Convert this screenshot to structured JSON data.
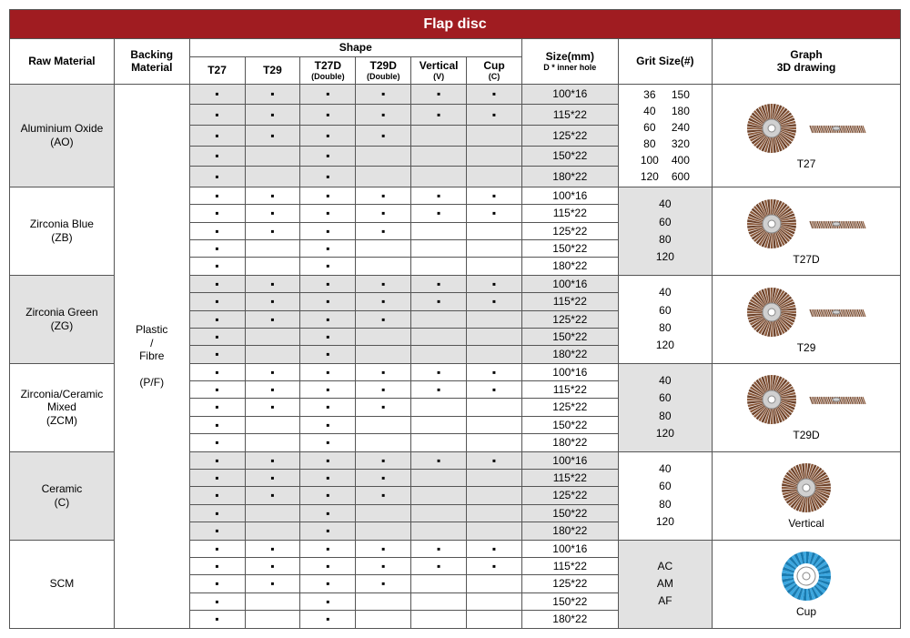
{
  "title": "Flap disc",
  "headers": {
    "raw_material": "Raw Material",
    "backing_material": "Backing Material",
    "shape": "Shape",
    "shapes": [
      {
        "main": "T27",
        "sub": ""
      },
      {
        "main": "T29",
        "sub": ""
      },
      {
        "main": "T27D",
        "sub": "(Double)"
      },
      {
        "main": "T29D",
        "sub": "(Double)"
      },
      {
        "main": "Vertical",
        "sub": "(V)"
      },
      {
        "main": "Cup",
        "sub": "(C)"
      }
    ],
    "size": "Size(mm)",
    "size_sub": "D * inner hole",
    "grit": "Grit Size(#)",
    "graph": "Graph",
    "graph_sub": "3D drawing"
  },
  "backing": "Plastic\n/\nFibre\n\n(P/F)",
  "materials": [
    {
      "name": "Aluminium Oxide\n(AO)",
      "alt": true
    },
    {
      "name": "Zirconia Blue\n(ZB)",
      "alt": false
    },
    {
      "name": "Zirconia Green\n(ZG)",
      "alt": true
    },
    {
      "name": "Zirconia/Ceramic\nMixed\n(ZCM)",
      "alt": false
    },
    {
      "name": "Ceramic\n(C)",
      "alt": true
    },
    {
      "name": "SCM",
      "alt": false
    }
  ],
  "sizes": [
    "100*16",
    "115*22",
    "125*22",
    "150*22",
    "180*22"
  ],
  "shape_matrix": [
    [
      [
        1,
        1,
        1,
        1,
        1,
        1
      ],
      [
        1,
        1,
        1,
        1,
        1,
        1
      ],
      [
        1,
        1,
        1,
        1,
        0,
        0
      ],
      [
        1,
        0,
        1,
        0,
        0,
        0
      ],
      [
        1,
        0,
        1,
        0,
        0,
        0
      ]
    ],
    [
      [
        1,
        1,
        1,
        1,
        1,
        1
      ],
      [
        1,
        1,
        1,
        1,
        1,
        1
      ],
      [
        1,
        1,
        1,
        1,
        0,
        0
      ],
      [
        1,
        0,
        1,
        0,
        0,
        0
      ],
      [
        1,
        0,
        1,
        0,
        0,
        0
      ]
    ],
    [
      [
        1,
        1,
        1,
        1,
        1,
        1
      ],
      [
        1,
        1,
        1,
        1,
        1,
        1
      ],
      [
        1,
        1,
        1,
        1,
        0,
        0
      ],
      [
        1,
        0,
        1,
        0,
        0,
        0
      ],
      [
        1,
        0,
        1,
        0,
        0,
        0
      ]
    ],
    [
      [
        1,
        1,
        1,
        1,
        1,
        1
      ],
      [
        1,
        1,
        1,
        1,
        1,
        1
      ],
      [
        1,
        1,
        1,
        1,
        0,
        0
      ],
      [
        1,
        0,
        1,
        0,
        0,
        0
      ],
      [
        1,
        0,
        1,
        0,
        0,
        0
      ]
    ],
    [
      [
        1,
        1,
        1,
        1,
        1,
        1
      ],
      [
        1,
        1,
        1,
        1,
        0,
        0
      ],
      [
        1,
        1,
        1,
        1,
        0,
        0
      ],
      [
        1,
        0,
        1,
        0,
        0,
        0
      ],
      [
        1,
        0,
        1,
        0,
        0,
        0
      ]
    ],
    [
      [
        1,
        1,
        1,
        1,
        1,
        1
      ],
      [
        1,
        1,
        1,
        1,
        1,
        1
      ],
      [
        1,
        1,
        1,
        1,
        0,
        0
      ],
      [
        1,
        0,
        1,
        0,
        0,
        0
      ],
      [
        1,
        0,
        1,
        0,
        0,
        0
      ]
    ]
  ],
  "grits": [
    {
      "type": "double",
      "left": [
        "36",
        "40",
        "60",
        "80",
        "100",
        "120"
      ],
      "right": [
        "150",
        "180",
        "240",
        "320",
        "400",
        "600"
      ],
      "alt": false
    },
    {
      "type": "single",
      "vals": [
        "40",
        "60",
        "80",
        "120"
      ],
      "alt": true
    },
    {
      "type": "single",
      "vals": [
        "40",
        "60",
        "80",
        "120"
      ],
      "alt": false
    },
    {
      "type": "single",
      "vals": [
        "40",
        "60",
        "80",
        "120"
      ],
      "alt": true
    },
    {
      "type": "single",
      "vals": [
        "40",
        "60",
        "80",
        "120"
      ],
      "alt": false
    },
    {
      "type": "single",
      "vals": [
        "AC",
        "AM",
        "AF"
      ],
      "alt": true
    }
  ],
  "graph_labels": [
    "T27",
    "T27D",
    "T29",
    "T29D",
    "Vertical",
    "Cup"
  ],
  "colors": {
    "flap": "#8b5a3c",
    "flap_dark": "#6b4028",
    "hub": "#d0d0d0",
    "hub_dark": "#888",
    "cup": "#3ba7e0",
    "cup_dark": "#1a7bb0"
  },
  "col_widths": {
    "raw": 100,
    "backing": 72,
    "shape": 53,
    "size": 92,
    "grit": 90,
    "graph": 180
  }
}
